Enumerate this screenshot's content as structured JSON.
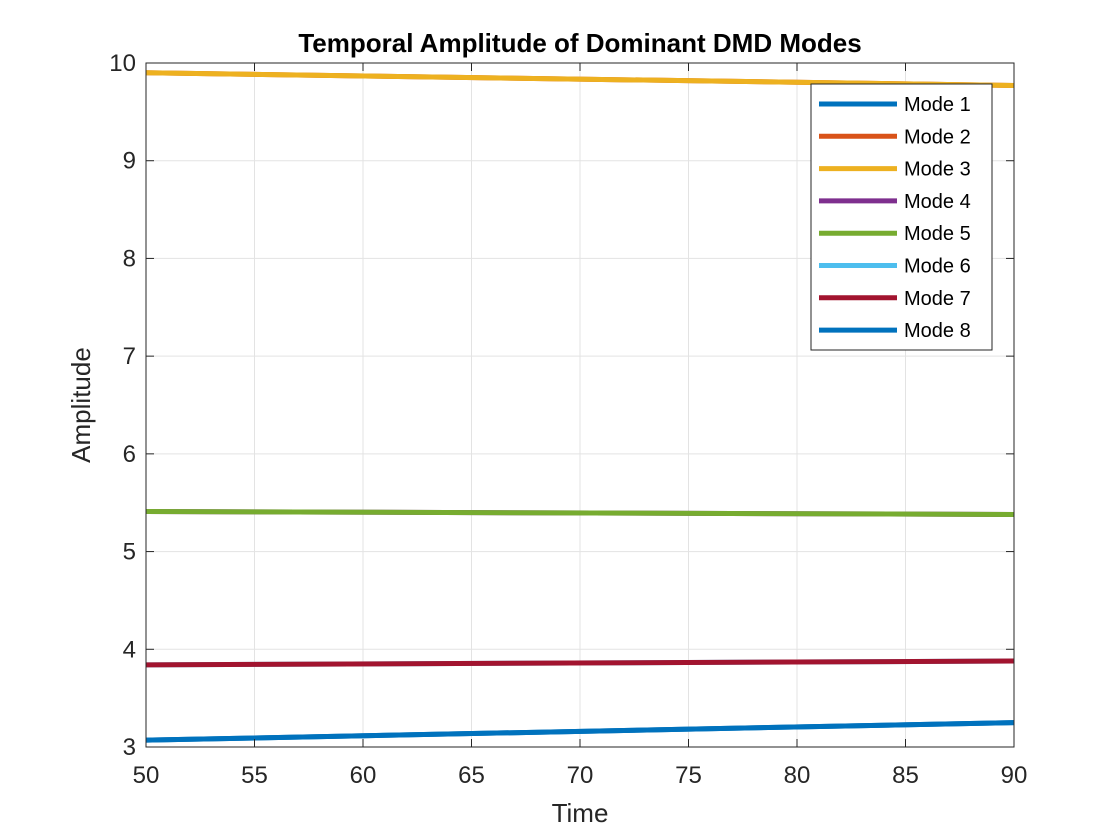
{
  "chart_data": {
    "type": "line",
    "title": "Temporal Amplitude of Dominant DMD Modes",
    "xlabel": "Time",
    "ylabel": "Amplitude",
    "xlim": [
      50,
      90
    ],
    "ylim": [
      3,
      10
    ],
    "xticks": [
      50,
      55,
      60,
      65,
      70,
      75,
      80,
      85,
      90
    ],
    "yticks": [
      3,
      4,
      5,
      6,
      7,
      8,
      9,
      10
    ],
    "grid": true,
    "legend_position": "top-right",
    "series": [
      {
        "name": "Mode 1",
        "color": "#0072BD",
        "x": [
          50,
          90
        ],
        "y": [
          3.07,
          3.25
        ]
      },
      {
        "name": "Mode 2",
        "color": "#D95319",
        "x": [
          50,
          90
        ],
        "y": [
          9.9,
          9.77
        ]
      },
      {
        "name": "Mode 3",
        "color": "#EDB120",
        "x": [
          50,
          90
        ],
        "y": [
          9.9,
          9.77
        ]
      },
      {
        "name": "Mode 4",
        "color": "#7E2F8E",
        "x": [
          50,
          90
        ],
        "y": [
          5.41,
          5.38
        ]
      },
      {
        "name": "Mode 5",
        "color": "#77AC30",
        "x": [
          50,
          90
        ],
        "y": [
          5.41,
          5.38
        ]
      },
      {
        "name": "Mode 6",
        "color": "#4DBEEE",
        "x": [
          50,
          90
        ],
        "y": [
          3.84,
          3.88
        ]
      },
      {
        "name": "Mode 7",
        "color": "#A2142F",
        "x": [
          50,
          90
        ],
        "y": [
          3.84,
          3.88
        ]
      },
      {
        "name": "Mode 8",
        "color": "#0072BD",
        "x": [
          50,
          90
        ],
        "y": [
          3.07,
          3.25
        ]
      }
    ]
  }
}
